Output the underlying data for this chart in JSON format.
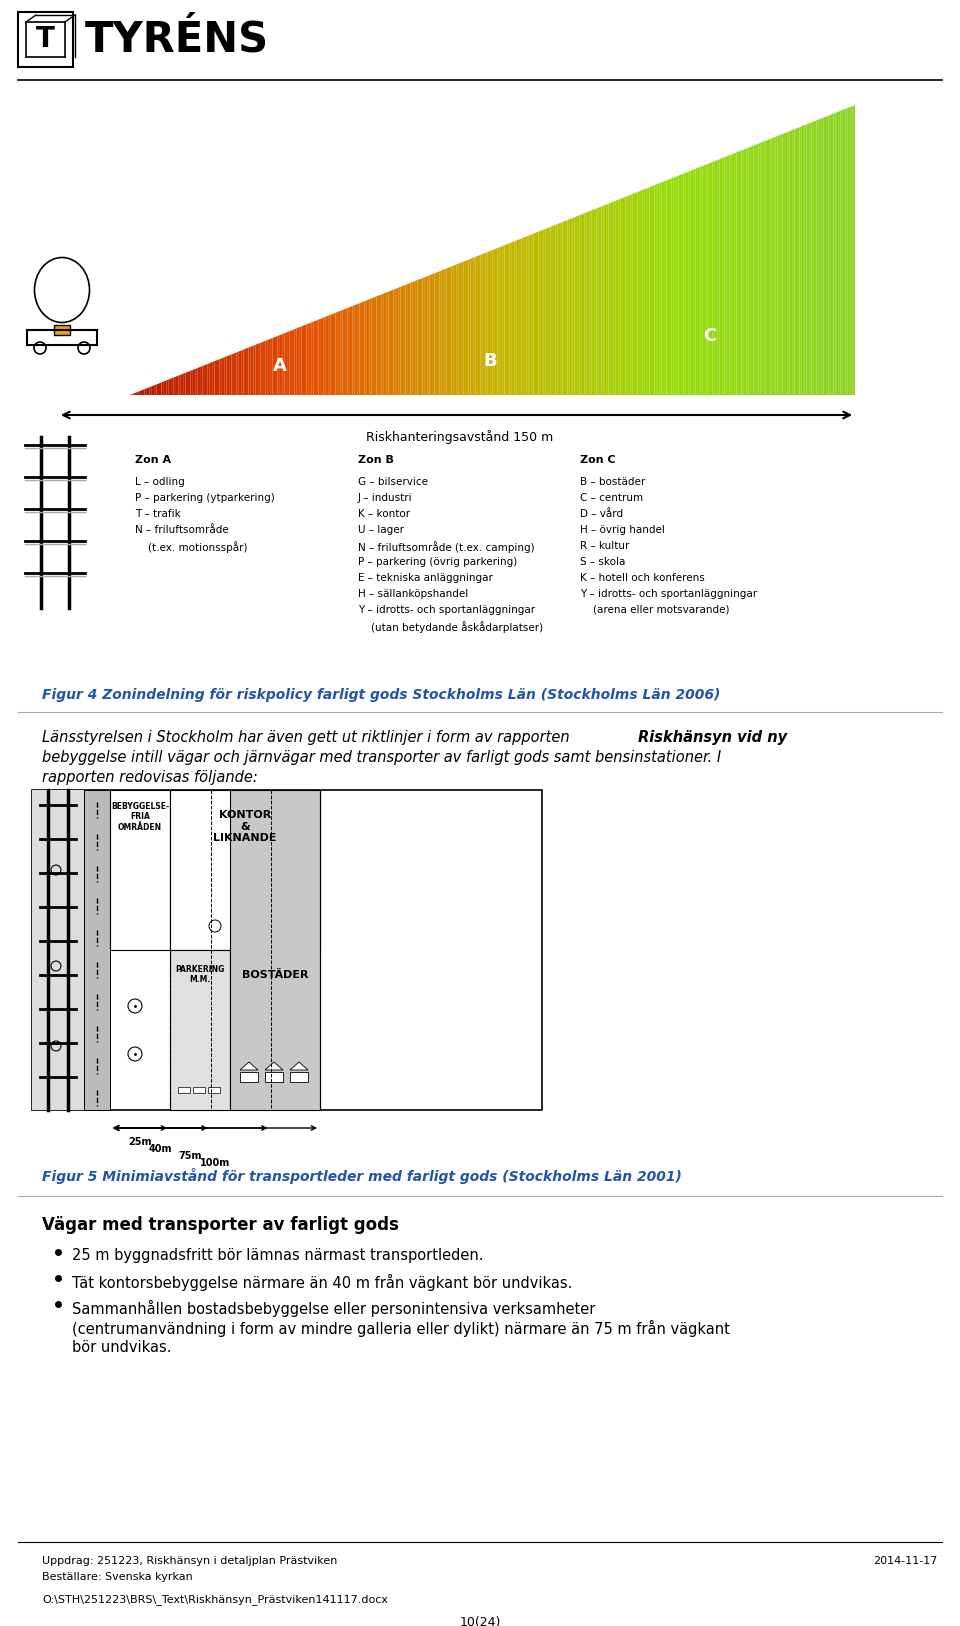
{
  "title_logo": "TYRÉNS",
  "page_number": "10(24)",
  "uppdrag": "Uppdrag: 251223, Riskhänsyn i detaljplan Prästviken",
  "date": "2014-11-17",
  "bestallare": "Beställare: Svenska kyrkan",
  "filepath": "O:\\STH\\251223\\BRS\\_Text\\Riskhänsyn_Prästviken141117.docx",
  "fig4_caption": "Figur 4 Zonindelning för riskpolicy farligt gods Stockholms Län (Stockholms Län 2006)",
  "fig4_caption_color": "#2255aa",
  "intro_line1": "Länsstyrelsen i Stockholm har även gett ut riktlinjer i form av rapporten ",
  "intro_italic": "Riskhänsyn vid ny",
  "intro_line2": "bebyggelse intill vägar och järnvägar med transporter av farligt gods samt bensinstationer. I",
  "intro_line3": "rapporten redovisas följande:",
  "fig5_caption": "Figur 5 Minimiavstånd för transportleder med farligt gods (Stockholms Län 2001)",
  "fig5_caption_color": "#2255aa",
  "bullet1": "25 m byggnadsfritt bör lämnas närmast transportleden.",
  "bullet2": "Tät kontorsbebyggelse närmare än 40 m från vägkant bör undvikas.",
  "bullet3_lines": [
    "Sammanhållen bostadsbebyggelse eller personintensiva verksamheter",
    "(centrumanvändning i form av mindre galleria eller dylikt) närmare än 75 m från vägkant",
    "bör undvikas."
  ],
  "vagar_header": "Vägar med transporter av farligt gods",
  "bg_color": "#ffffff",
  "text_color": "#000000",
  "riskhantering_label": "Riskhanteringsavstånd 150 m",
  "zon_a_header": "Zon A",
  "zon_b_header": "Zon B",
  "zon_c_header": "Zon C",
  "zon_a_items": [
    "L – odling",
    "P – parkering (ytparkering)",
    "T – trafik",
    "N – friluftsområde",
    "    (t.ex. motionsspår)"
  ],
  "zon_b_items": [
    "G – bilservice",
    "J – industri",
    "K – kontor",
    "U – lager",
    "N – friluftsområde (t.ex. camping)",
    "P – parkering (övrig parkering)",
    "E – tekniska anläggningar",
    "H – sällanköpshandel",
    "Y – idrotts- och sportanläggningar",
    "    (utan betydande åskådarplatser)"
  ],
  "zon_c_items": [
    "B – bostäder",
    "C – centrum",
    "D – vård",
    "H – övrig handel",
    "R – kultur",
    "S – skola",
    "K – hotell och konferens",
    "Y – idrotts- och sportanläggningar",
    "    (arena eller motsvarande)"
  ]
}
